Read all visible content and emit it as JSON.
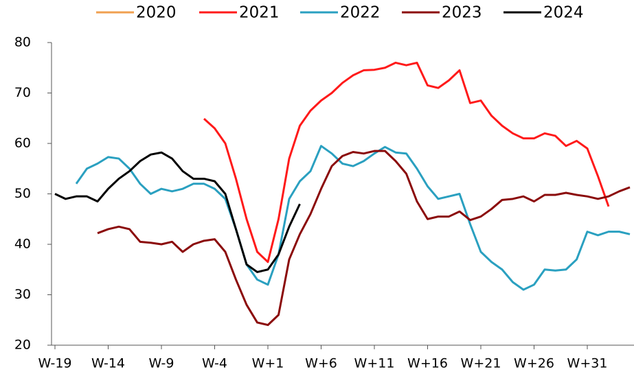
{
  "chart_data": {
    "type": "line",
    "categories": [
      "W-19",
      null,
      null,
      null,
      null,
      "W-14",
      null,
      null,
      null,
      null,
      "W-9",
      null,
      null,
      null,
      null,
      "W-4",
      null,
      null,
      null,
      null,
      "W+1",
      null,
      null,
      null,
      null,
      "W+6",
      null,
      null,
      null,
      null,
      "W+11",
      null,
      null,
      null,
      null,
      "W+16",
      null,
      null,
      null,
      null,
      "W+21",
      null,
      null,
      null,
      null,
      "W+26",
      null,
      null,
      null,
      null,
      "W+31",
      null,
      null,
      null,
      null
    ],
    "ylim": [
      20,
      80
    ],
    "yticks": [
      20,
      30,
      40,
      50,
      60,
      70,
      80
    ],
    "grid": false,
    "legend": "top",
    "series": [
      {
        "name": "2020",
        "color": "#f0a050",
        "values": [
          null,
          null,
          null,
          null,
          null,
          null,
          null,
          null,
          null,
          null,
          null,
          null,
          null,
          null,
          null,
          null,
          null,
          null,
          null,
          null,
          null,
          null,
          null,
          null,
          null,
          null,
          null,
          null,
          null,
          null,
          null,
          null,
          null,
          null,
          null,
          null,
          null,
          null,
          null,
          null,
          null,
          null,
          null,
          null,
          null,
          null,
          null,
          null,
          null,
          null,
          null,
          null,
          null,
          null,
          null
        ]
      },
      {
        "name": "2021",
        "color": "#ff1a1a",
        "values": [
          null,
          null,
          null,
          null,
          null,
          null,
          null,
          null,
          null,
          null,
          null,
          null,
          null,
          null,
          64.9,
          63,
          60,
          53,
          45,
          38.5,
          36.5,
          45,
          57,
          63.5,
          66.5,
          68.5,
          70,
          72,
          73.5,
          74.5,
          74.6,
          75,
          76,
          75.5,
          76,
          71.5,
          71,
          72.5,
          74.5,
          68,
          68.5,
          65.5,
          63.5,
          62,
          61,
          61,
          62,
          61.5,
          59.5,
          60.5,
          59,
          53.5,
          47.5,
          null,
          null
        ]
      },
      {
        "name": "2022",
        "color": "#2aa0c0",
        "values": [
          null,
          null,
          52,
          55,
          56,
          57.3,
          57,
          55,
          52,
          50,
          51,
          50.5,
          51,
          52,
          52,
          51,
          49,
          43,
          36,
          33,
          32,
          38,
          49,
          52.5,
          54.5,
          59.5,
          58,
          56,
          55.5,
          56.5,
          58,
          59.3,
          58.2,
          58,
          55,
          51.5,
          49,
          49.5,
          50,
          44,
          38.5,
          36.5,
          35,
          32.5,
          31,
          32,
          35,
          34.8,
          35,
          37,
          42.5,
          41.8,
          42.5,
          42.5,
          42
        ]
      },
      {
        "name": "2023",
        "color": "#8b0a0a",
        "values": [
          null,
          null,
          null,
          null,
          42.2,
          43,
          43.5,
          43,
          40.5,
          40.3,
          40,
          40.5,
          38.5,
          40,
          40.7,
          41,
          38.5,
          33,
          28,
          24.5,
          24,
          26,
          37,
          42,
          46,
          51,
          55.5,
          57.5,
          58.3,
          58,
          58.5,
          58.5,
          56.5,
          54,
          48.5,
          45,
          45.5,
          45.5,
          46.5,
          44.8,
          45.5,
          47,
          48.8,
          49,
          49.5,
          48.5,
          49.8,
          49.8,
          50.2,
          49.8,
          49.5,
          49,
          49.5,
          50.5,
          51.3
        ]
      },
      {
        "name": "2024",
        "color": "#000000",
        "values": [
          50,
          49,
          49.5,
          49.5,
          48.5,
          51,
          53,
          54.5,
          56.5,
          57.8,
          58.2,
          57,
          54.5,
          53,
          53,
          52.5,
          50,
          43,
          36,
          34.5,
          35,
          38,
          43.5,
          48,
          null,
          null,
          null,
          null,
          null,
          null,
          null,
          null,
          null,
          null,
          null,
          null,
          null,
          null,
          null,
          null,
          null,
          null,
          null,
          null,
          null,
          null,
          null,
          null,
          null,
          null,
          null,
          null,
          null,
          null,
          null
        ]
      }
    ]
  }
}
